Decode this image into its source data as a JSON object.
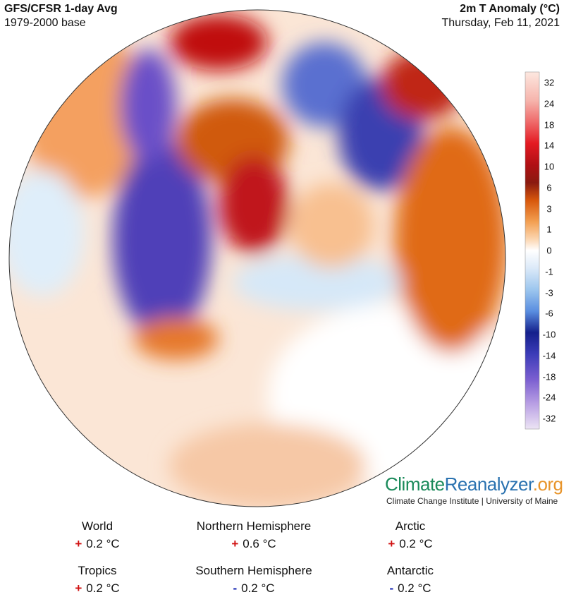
{
  "header": {
    "title": "GFS/CFSR 1-day Avg",
    "subtitle": "1979-2000 base",
    "variable": "2m T Anomaly (°C)",
    "date": "Thursday, Feb 11, 2021"
  },
  "legend": {
    "labels": [
      32,
      24,
      18,
      14,
      10,
      6,
      3,
      1,
      0,
      -1,
      -3,
      -6,
      -10,
      -14,
      -18,
      -24,
      -32
    ]
  },
  "logo": {
    "parts": [
      "Climate",
      "Reanalyzer",
      ".org"
    ],
    "institution": "Climate Change Institute | University of Maine"
  },
  "stats": [
    {
      "label": "World",
      "sign": "+",
      "value": "0.2 °C"
    },
    {
      "label": "Northern Hemisphere",
      "sign": "+",
      "value": "0.6 °C"
    },
    {
      "label": "Arctic",
      "sign": "+",
      "value": "0.2 °C"
    },
    {
      "label": "Tropics",
      "sign": "+",
      "value": "0.2 °C"
    },
    {
      "label": "Southern Hemisphere",
      "sign": "-",
      "value": "0.2 °C"
    },
    {
      "label": "Antarctic",
      "sign": "-",
      "value": "0.2 °C"
    }
  ]
}
